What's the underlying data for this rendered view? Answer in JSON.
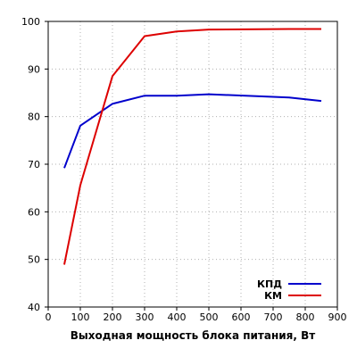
{
  "chart_data": {
    "type": "line",
    "title": "",
    "xlabel": "Выходная мощность блока питания, Вт",
    "ylabel": "",
    "xlim": [
      0,
      900
    ],
    "ylim": [
      40,
      100
    ],
    "xticks": [
      0,
      100,
      200,
      300,
      400,
      500,
      600,
      700,
      800,
      900
    ],
    "yticks": [
      40,
      50,
      60,
      70,
      80,
      90,
      100
    ],
    "grid": true,
    "legend_position": "bottom-right",
    "series": [
      {
        "name": "КПД",
        "color": "#0000cc",
        "x": [
          50,
          100,
          200,
          300,
          400,
          500,
          750,
          850
        ],
        "y": [
          69.2,
          78.1,
          82.7,
          84.4,
          84.4,
          84.7,
          84.0,
          83.3
        ]
      },
      {
        "name": "КМ",
        "color": "#dd0000",
        "x": [
          50,
          100,
          200,
          300,
          400,
          500,
          750,
          850
        ],
        "y": [
          48.9,
          65.6,
          88.5,
          96.9,
          97.9,
          98.3,
          98.4,
          98.4
        ]
      }
    ]
  }
}
